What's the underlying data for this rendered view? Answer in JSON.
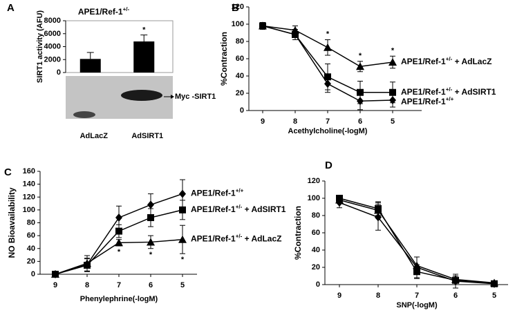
{
  "chart_data": [
    {
      "type": "bar",
      "panel": "A",
      "title": "APE1/Ref-1+/-",
      "ylabel": "SIRT1 activity (AFU)",
      "categories": [
        "AdLacZ",
        "AdSIRT1"
      ],
      "values": [
        2100,
        4800
      ],
      "err": [
        1000,
        1000
      ],
      "color": "#000000",
      "significance": [
        null,
        "*"
      ],
      "blot_label": "Myc -SIRT1",
      "ylim": [
        0,
        8000
      ],
      "yticks": [
        0,
        2000,
        4000,
        6000,
        8000
      ]
    },
    {
      "type": "line",
      "panel": "B",
      "xlabel": "Acethylcholine(-logM)",
      "ylabel": "%Contraction",
      "categories": [
        "9",
        "8",
        "7",
        "6",
        "5"
      ],
      "ylim": [
        0,
        120
      ],
      "yticks": [
        0,
        20,
        40,
        60,
        80,
        100,
        120
      ],
      "significance_position": "above",
      "series": [
        {
          "name": "APE1/Ref-1+/- + AdLacZ",
          "color": "#000000",
          "marker": "triangle",
          "values": [
            98,
            93,
            73,
            51,
            56
          ],
          "err": [
            4,
            5,
            9,
            6,
            7
          ],
          "significance": [
            null,
            null,
            "*",
            "*",
            "*"
          ]
        },
        {
          "name": "APE1/Ref-1+/- + AdSIRT1",
          "color": "#000000",
          "marker": "square",
          "values": [
            98,
            88,
            39,
            21,
            21
          ],
          "err": [
            4,
            6,
            15,
            13,
            12
          ]
        },
        {
          "name": "APE1/Ref-1+/+",
          "color": "#000000",
          "marker": "diamond",
          "values": [
            98,
            88,
            31,
            11,
            12
          ],
          "err": [
            4,
            6,
            10,
            10,
            8
          ]
        }
      ]
    },
    {
      "type": "line",
      "panel": "C",
      "xlabel": "Phenylephrine(-logM)",
      "ylabel": "NO Bioavailability",
      "categories": [
        "9",
        "8",
        "7",
        "6",
        "5"
      ],
      "ylim": [
        0,
        160
      ],
      "yticks": [
        0,
        20,
        40,
        60,
        80,
        100,
        120,
        140,
        160
      ],
      "significance_position": "below",
      "series": [
        {
          "name": "APE1/Ref-1+/+",
          "color": "#000000",
          "marker": "diamond",
          "values": [
            0,
            15,
            88,
            108,
            125
          ],
          "err": [
            0,
            10,
            18,
            17,
            22
          ]
        },
        {
          "name": "APE1/Ref-1+/- + AdSIRT1",
          "color": "#000000",
          "marker": "square",
          "values": [
            0,
            14,
            67,
            88,
            100
          ],
          "err": [
            0,
            10,
            10,
            14,
            15
          ]
        },
        {
          "name": "APE1/Ref-1+/- + AdLacZ",
          "color": "#000000",
          "marker": "triangle",
          "values": [
            0,
            17,
            49,
            50,
            54
          ],
          "err": [
            0,
            12,
            5,
            10,
            22
          ],
          "significance": [
            null,
            null,
            "*",
            "*",
            "*"
          ]
        }
      ]
    },
    {
      "type": "line",
      "panel": "D",
      "xlabel": "SNP(-logM)",
      "ylabel": "%Contraction",
      "categories": [
        "9",
        "8",
        "7",
        "6",
        "5"
      ],
      "ylim": [
        0,
        120
      ],
      "yticks": [
        0,
        20,
        40,
        60,
        80,
        100,
        120
      ],
      "series": [
        {
          "color": "#000000",
          "marker": "diamond",
          "values": [
            95,
            78,
            20,
            4,
            1
          ],
          "err": [
            6,
            15,
            12,
            8,
            2
          ]
        },
        {
          "color": "#000000",
          "marker": "square",
          "values": [
            100,
            88,
            15,
            5,
            1
          ],
          "err": [
            3,
            8,
            8,
            5,
            2
          ]
        },
        {
          "color": "#000000",
          "marker": "triangle",
          "values": [
            98,
            86,
            22,
            6,
            2
          ],
          "err": [
            4,
            9,
            10,
            6,
            2
          ]
        }
      ]
    }
  ]
}
